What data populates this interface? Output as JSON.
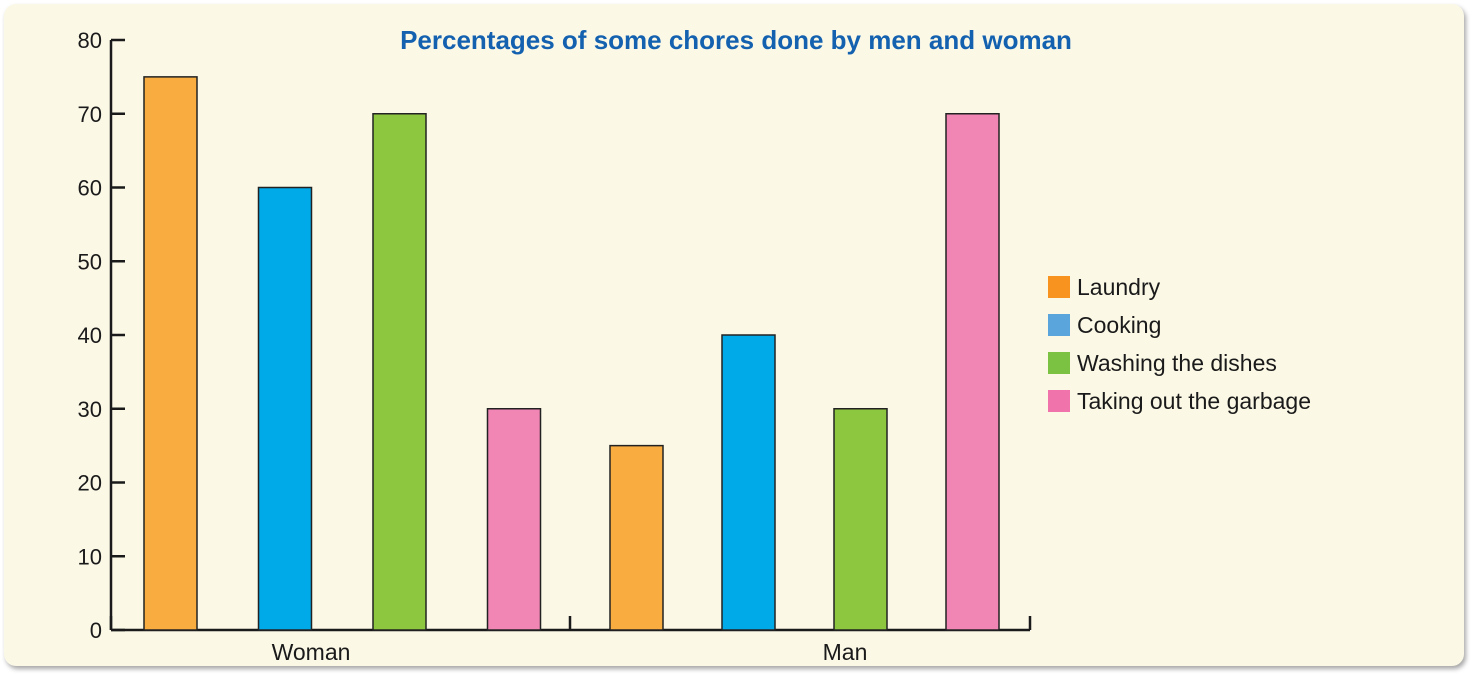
{
  "chart_data": {
    "type": "bar",
    "title": "Percentages of some chores done by men and woman",
    "xlabel": "",
    "ylabel": "",
    "categories": [
      "Woman",
      "Man"
    ],
    "series": [
      {
        "name": "Laundry",
        "color": "#f9ac3f",
        "values": [
          75,
          25
        ]
      },
      {
        "name": "Cooking",
        "color": "#00a9e8",
        "values": [
          60,
          40
        ]
      },
      {
        "name": "Washing the dishes",
        "color": "#8dc63f",
        "values": [
          70,
          30
        ]
      },
      {
        "name": "Taking out the garbage",
        "color": "#f186b5",
        "values": [
          30,
          70
        ]
      }
    ],
    "yticks": [
      "0",
      "10",
      "20",
      "30",
      "40",
      "50",
      "60",
      "70",
      "80"
    ],
    "ylim": [
      0,
      80
    ],
    "grid": false,
    "legend_position": "right",
    "title_color": "#1461b0",
    "legend_swatch_colors": [
      "#f7931e",
      "#5aa6dc",
      "#7cc242",
      "#f173ac"
    ]
  }
}
